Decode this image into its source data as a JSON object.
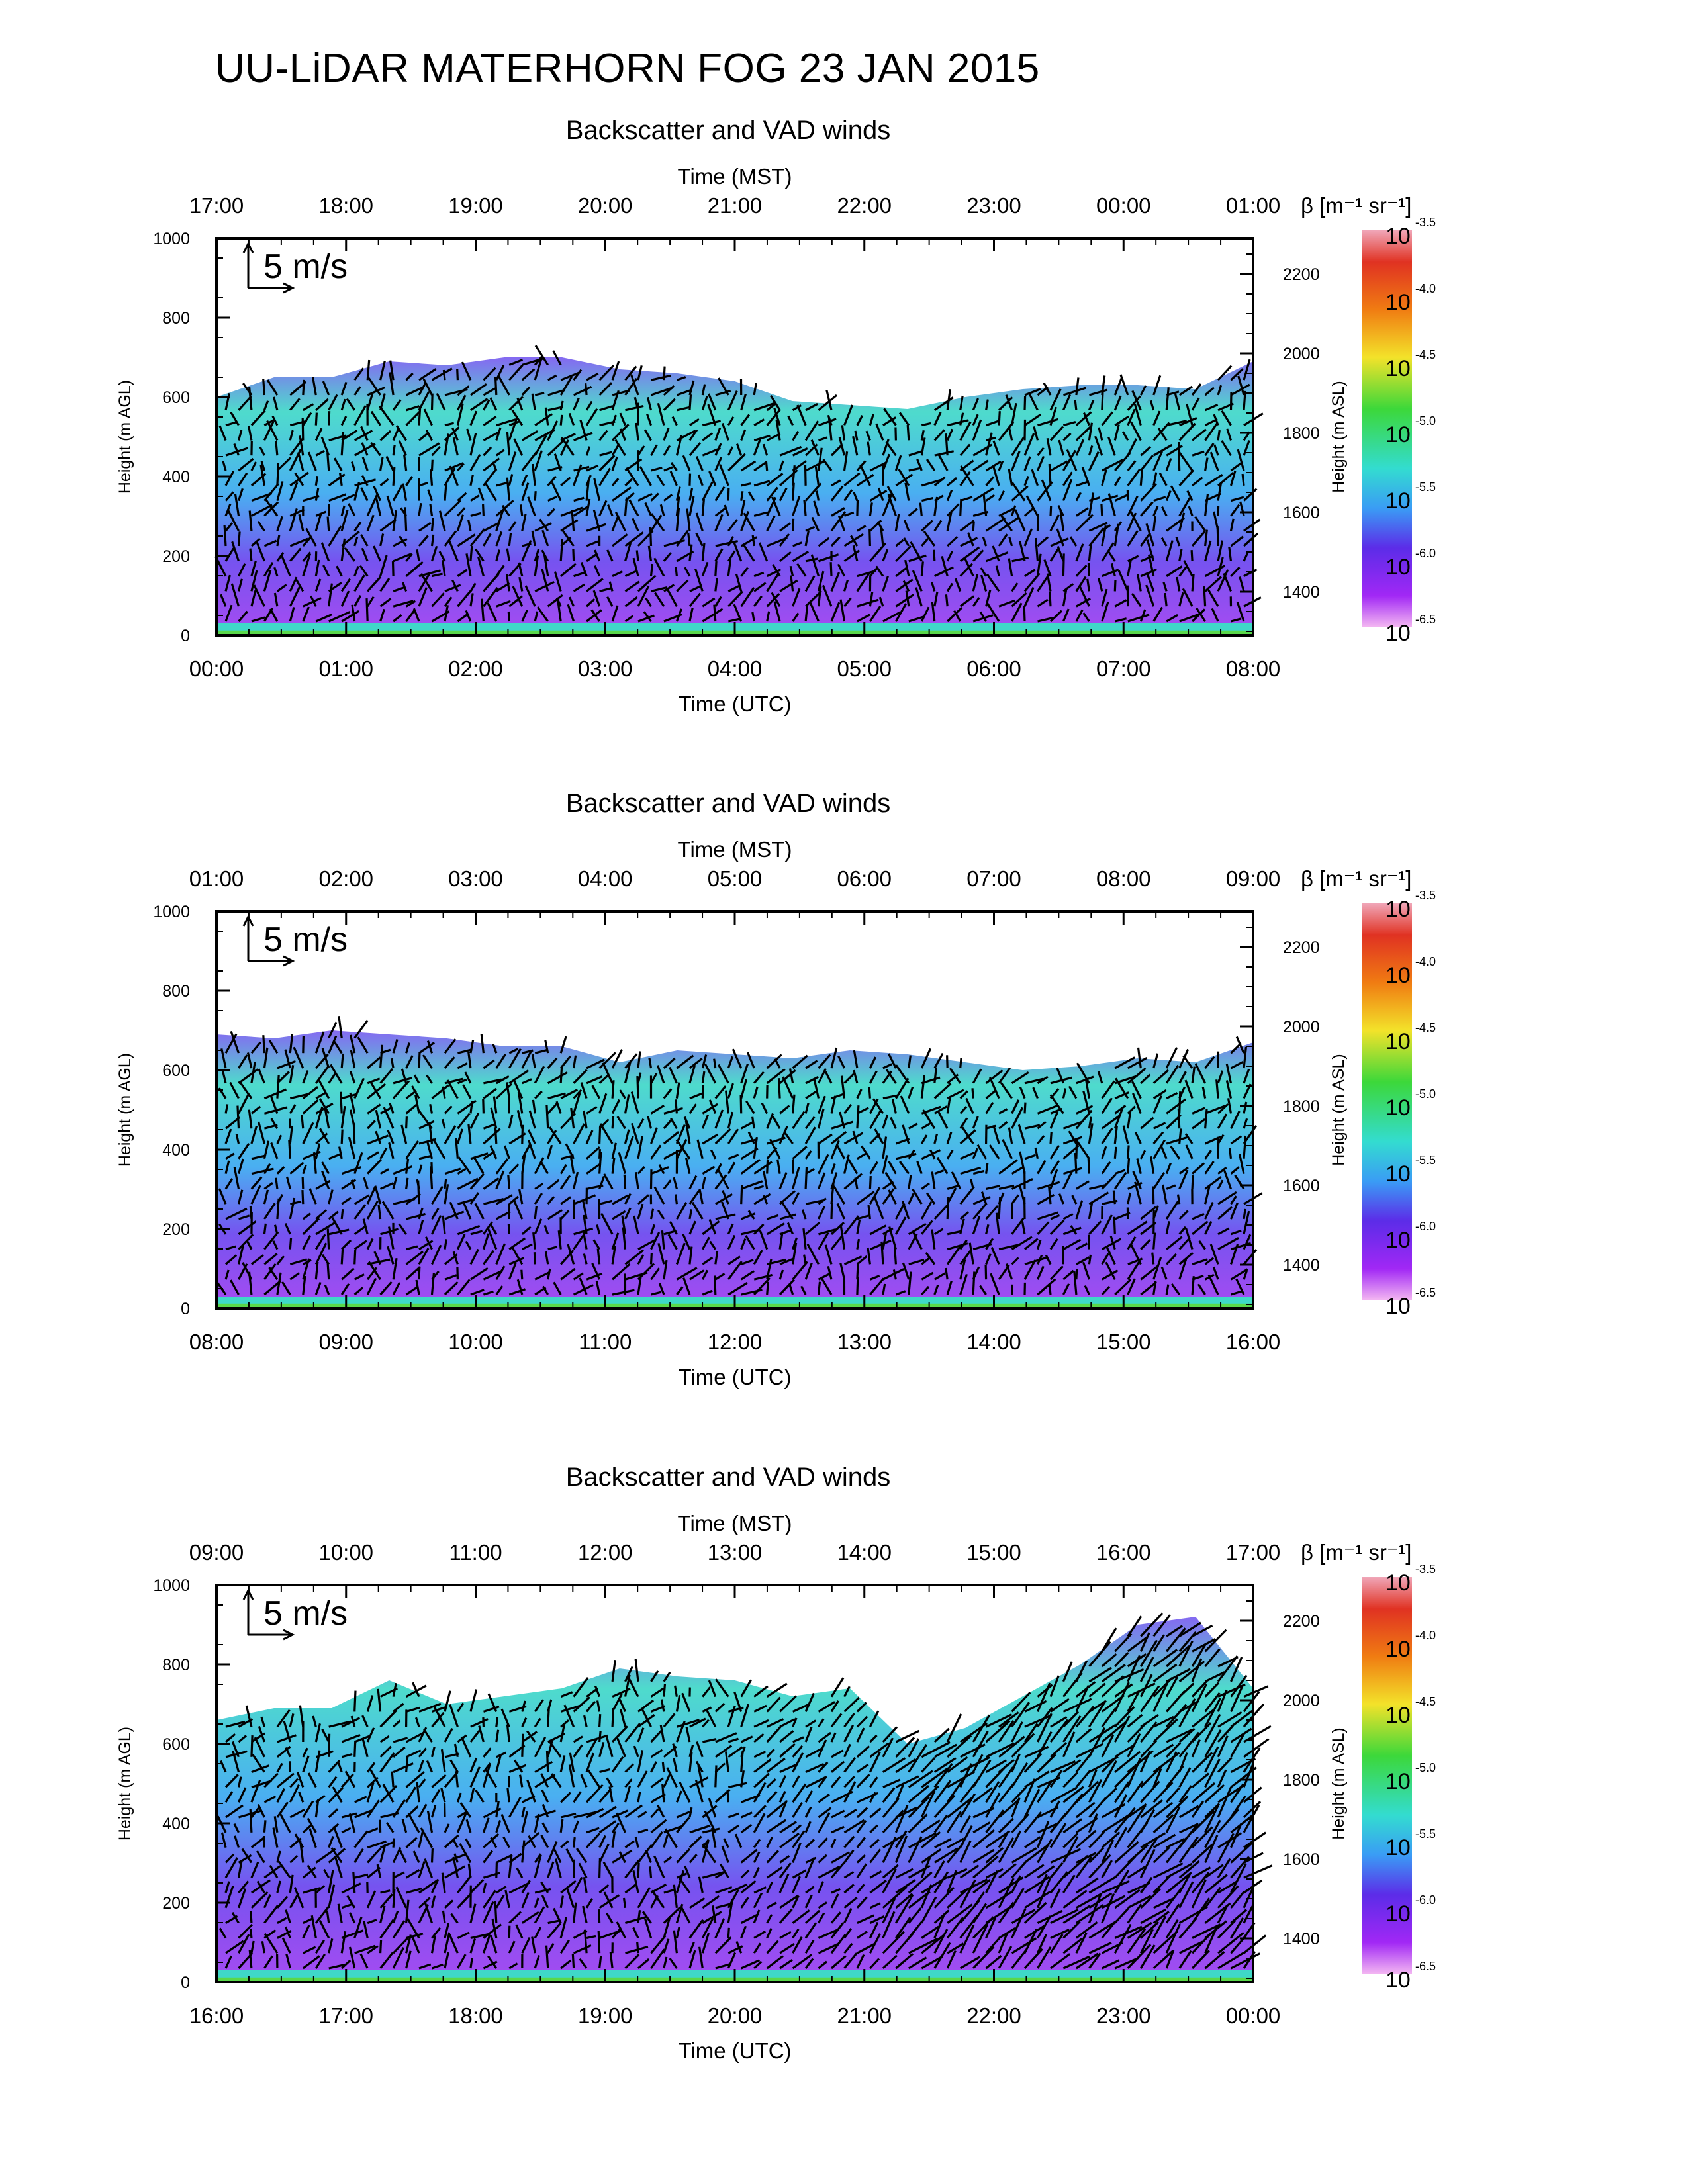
{
  "title": "UU-LiDAR MATERHORN FOG  23 JAN 2015",
  "colorbar": {
    "label": "β [m⁻¹ sr⁻¹]",
    "base": "10",
    "exponents": [
      "-3.5",
      "-4.0",
      "-4.5",
      "-5.0",
      "-5.5",
      "-6.0",
      "-6.5"
    ],
    "colors": [
      "#f0a6b8",
      "#e03222",
      "#f07c12",
      "#f3e22a",
      "#3cd83a",
      "#33dcd0",
      "#3a9cf5",
      "#4a30e8",
      "#8a22f4",
      "#e8a0f2"
    ]
  },
  "chart_data": [
    {
      "type": "heatmap",
      "title": "Backscatter and VAD winds",
      "xlabel": "Time (UTC)",
      "x2label": "Time (MST)",
      "ylabel": "Height (m AGL)",
      "y2label": "Height (m ASL)",
      "x_ticks": [
        "00:00",
        "01:00",
        "02:00",
        "03:00",
        "04:00",
        "05:00",
        "06:00",
        "07:00",
        "08:00"
      ],
      "x2_ticks": [
        "17:00",
        "18:00",
        "19:00",
        "20:00",
        "21:00",
        "22:00",
        "23:00",
        "00:00",
        "01:00"
      ],
      "y_ticks": [
        0,
        200,
        400,
        600,
        800,
        1000
      ],
      "y2_ticks": [
        1400,
        1600,
        1800,
        2000,
        2200
      ],
      "ylim": [
        0,
        1000
      ],
      "y2lim": [
        1290,
        2290
      ],
      "wind_scale_label": "5 m/s",
      "top_height": [
        600,
        650,
        650,
        690,
        680,
        700,
        700,
        670,
        660,
        640,
        590,
        580,
        570,
        600,
        620,
        630,
        630,
        620,
        690
      ]
    },
    {
      "type": "heatmap",
      "title": "Backscatter and VAD winds",
      "xlabel": "Time (UTC)",
      "x2label": "Time (MST)",
      "ylabel": "Height (m AGL)",
      "y2label": "Height (m ASL)",
      "x_ticks": [
        "08:00",
        "09:00",
        "10:00",
        "11:00",
        "12:00",
        "13:00",
        "14:00",
        "15:00",
        "16:00"
      ],
      "x2_ticks": [
        "01:00",
        "02:00",
        "03:00",
        "04:00",
        "05:00",
        "06:00",
        "07:00",
        "08:00",
        "09:00"
      ],
      "y_ticks": [
        0,
        200,
        400,
        600,
        800,
        1000
      ],
      "y2_ticks": [
        1400,
        1600,
        1800,
        2000,
        2200
      ],
      "ylim": [
        0,
        1000
      ],
      "y2lim": [
        1290,
        2290
      ],
      "wind_scale_label": "5 m/s",
      "top_height": [
        690,
        680,
        700,
        690,
        680,
        660,
        660,
        620,
        650,
        640,
        630,
        650,
        640,
        620,
        600,
        610,
        630,
        620,
        670
      ]
    },
    {
      "type": "heatmap",
      "title": "Backscatter and VAD winds",
      "xlabel": "Time (UTC)",
      "x2label": "Time (MST)",
      "ylabel": "Height (m AGL)",
      "y2label": "Height (m ASL)",
      "x_ticks": [
        "16:00",
        "17:00",
        "18:00",
        "19:00",
        "20:00",
        "21:00",
        "22:00",
        "23:00",
        "00:00"
      ],
      "x2_ticks": [
        "09:00",
        "10:00",
        "11:00",
        "12:00",
        "13:00",
        "14:00",
        "15:00",
        "16:00",
        "17:00"
      ],
      "y_ticks": [
        0,
        200,
        400,
        600,
        800,
        1000
      ],
      "y2_ticks": [
        1400,
        1600,
        1800,
        2000,
        2200
      ],
      "ylim": [
        0,
        1000
      ],
      "y2lim": [
        1290,
        2290
      ],
      "wind_scale_label": "5 m/s",
      "top_height": [
        660,
        690,
        690,
        760,
        700,
        720,
        740,
        790,
        770,
        760,
        720,
        740,
        600,
        640,
        720,
        800,
        900,
        920,
        740
      ]
    }
  ]
}
